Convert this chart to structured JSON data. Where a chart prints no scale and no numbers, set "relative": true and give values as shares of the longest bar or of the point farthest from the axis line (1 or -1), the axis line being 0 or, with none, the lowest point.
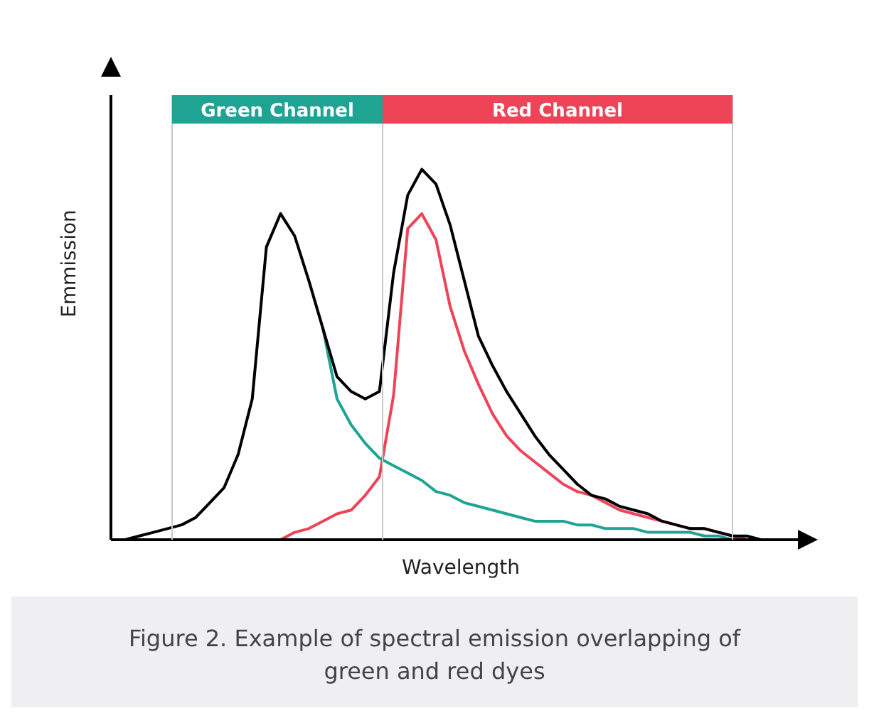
{
  "chart_data": {
    "type": "line",
    "relative": true,
    "xlabel": "Wavelength",
    "ylabel": "Emmission",
    "marker": "none",
    "line_style": "solid",
    "categories": [
      null,
      null,
      null,
      null,
      null,
      null,
      null,
      null,
      null,
      null,
      null,
      null,
      null,
      null,
      null,
      null,
      null,
      null,
      null,
      null,
      null,
      null,
      null,
      null,
      null,
      null,
      null,
      null,
      null,
      null,
      null,
      null,
      null,
      null,
      null,
      null,
      null,
      null,
      null,
      null,
      null,
      null,
      null,
      null,
      null,
      null,
      null,
      null
    ],
    "series": [
      {
        "color": "#000000",
        "values": [
          0,
          0,
          0.01,
          0.02,
          0.03,
          0.04,
          0.06,
          0.1,
          0.14,
          0.23,
          0.38,
          0.79,
          0.88,
          0.82,
          0.7,
          0.57,
          0.44,
          0.4,
          0.38,
          0.4,
          0.72,
          0.93,
          1,
          0.96,
          0.85,
          0.7,
          0.55,
          0.47,
          0.4,
          0.34,
          0.28,
          0.23,
          0.19,
          0.15,
          0.12,
          0.11,
          0.09,
          0.08,
          0.07,
          0.05,
          0.04,
          0.03,
          0.03,
          0.02,
          0.01,
          0.01,
          0,
          0
        ]
      },
      {
        "color": "#1fa393",
        "values": [
          null,
          null,
          null,
          null,
          null,
          null,
          null,
          null,
          null,
          null,
          null,
          null,
          null,
          null,
          null,
          0.57,
          0.38,
          0.31,
          0.26,
          0.22,
          0.2,
          0.18,
          0.16,
          0.13,
          0.12,
          0.1,
          0.09,
          0.08,
          0.07,
          0.06,
          0.05,
          0.05,
          0.05,
          0.04,
          0.04,
          0.03,
          0.03,
          0.03,
          0.02,
          0.02,
          0.02,
          0.02,
          0.01,
          0.01,
          0,
          0,
          null,
          null
        ]
      },
      {
        "color": "#ef4358",
        "values": [
          null,
          null,
          null,
          null,
          null,
          null,
          null,
          null,
          null,
          null,
          null,
          null,
          0,
          0.02,
          0.03,
          0.05,
          0.07,
          0.08,
          0.12,
          0.17,
          0.39,
          0.84,
          0.88,
          0.81,
          0.63,
          0.51,
          0.42,
          0.34,
          0.28,
          0.24,
          0.21,
          0.18,
          0.15,
          0.13,
          0.12,
          0.1,
          0.08,
          0.07,
          0.06,
          0.05,
          0.04,
          0.03,
          0.03,
          0.02,
          0.01,
          0,
          null,
          null
        ]
      }
    ],
    "annotations": [
      "Green Channel",
      "Red Channel",
      "Figure 2. Example of spectral emission overlapping of green and red dyes"
    ]
  }
}
